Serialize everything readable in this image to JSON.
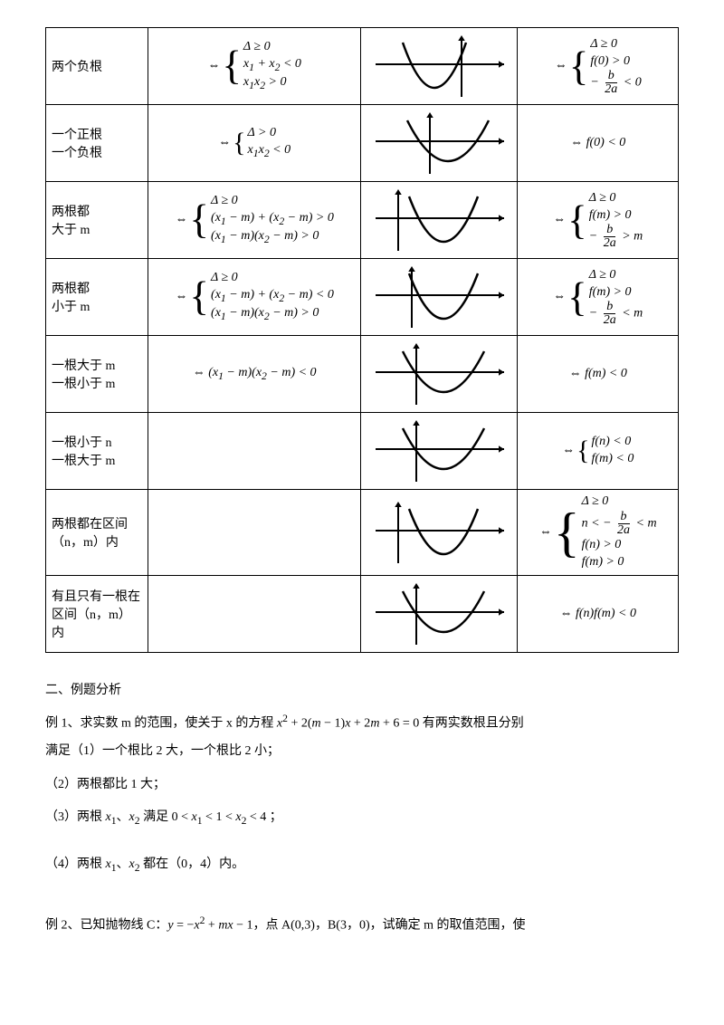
{
  "table": {
    "rows": [
      {
        "label": "两个负根",
        "cond2": {
          "iff": true,
          "lines": [
            "Δ ≥ 0",
            "<i>x</i><sub>1</sub> + <i>x</i><sub>2</sub> &lt; 0",
            "<i>x</i><sub>1</sub><i>x</i><sub>2</sub> &gt; 0"
          ]
        },
        "graph": {
          "type": "parabola",
          "axisX": 105,
          "vertexX": 75,
          "vertexY": 62,
          "halfW": 35,
          "depth": 50
        },
        "cond4": {
          "iff": true,
          "lines": [
            "Δ ≥ 0",
            "<i>f</i>(0) &gt; 0",
            "− <span class='frac'><span class='num'><i>b</i></span><span class='den'>2<i>a</i></span></span> &lt; 0"
          ]
        }
      },
      {
        "label": "一个正根\n一个负根",
        "cond2": {
          "iff": true,
          "lines": [
            "Δ &gt; 0",
            "<i>x</i><sub>1</sub><i>x</i><sub>2</sub> &lt; 0"
          ]
        },
        "graph": {
          "type": "parabola",
          "axisX": 70,
          "vertexX": 90,
          "vertexY": 58,
          "halfW": 45,
          "depth": 45
        },
        "cond4": {
          "plain": "⇔ <i>f</i>(0) &lt; 0"
        }
      },
      {
        "label": "两根都\n大于 m",
        "cond2": {
          "iff": true,
          "lines": [
            "Δ ≥ 0",
            "(<i>x</i><sub>1</sub> − <i>m</i>) + (<i>x</i><sub>2</sub> − <i>m</i>) &gt; 0",
            "(<i>x</i><sub>1</sub> − <i>m</i>)(<i>x</i><sub>2</sub> − <i>m</i>) &gt; 0"
          ]
        },
        "graph": {
          "type": "parabola",
          "axisX": 35,
          "vertexX": 85,
          "vertexY": 62,
          "halfW": 38,
          "depth": 50
        },
        "cond4": {
          "iff": true,
          "lines": [
            "Δ ≥ 0",
            "<i>f</i>(<i>m</i>) &gt; 0",
            "− <span class='frac'><span class='num'><i>b</i></span><span class='den'>2<i>a</i></span></span> &gt; <i>m</i>"
          ]
        }
      },
      {
        "label": "两根都\n小于 m",
        "cond2": {
          "iff": true,
          "lines": [
            "Δ ≥ 0",
            "(<i>x</i><sub>1</sub> − <i>m</i>) + (<i>x</i><sub>2</sub> − <i>m</i>) &lt; 0",
            "(<i>x</i><sub>1</sub> − <i>m</i>)(<i>x</i><sub>2</sub> − <i>m</i>) &gt; 0"
          ]
        },
        "graph": {
          "type": "parabola",
          "axisX": 50,
          "vertexX": 85,
          "vertexY": 62,
          "halfW": 38,
          "depth": 50
        },
        "cond4": {
          "iff": true,
          "lines": [
            "Δ ≥ 0",
            "<i>f</i>(<i>m</i>) &gt; 0",
            "− <span class='frac'><span class='num'><i>b</i></span><span class='den'>2<i>a</i></span></span> &lt; <i>m</i>"
          ]
        }
      },
      {
        "label": "一根大于 m\n一根小于 m",
        "cond2": {
          "plain": "⇔ (<i>x</i><sub>1</sub> − <i>m</i>)(<i>x</i><sub>2</sub> − <i>m</i>) &lt; 0"
        },
        "graph": {
          "type": "parabola",
          "axisX": 55,
          "vertexX": 85,
          "vertexY": 58,
          "halfW": 45,
          "depth": 45
        },
        "cond4": {
          "plain": "⇔ <i>f</i>(<i>m</i>) &lt; 0"
        }
      },
      {
        "label": "一根小于 n\n一根大于 m",
        "cond2": {
          "plain": ""
        },
        "graph": {
          "type": "parabola",
          "axisX": 55,
          "vertexX": 85,
          "vertexY": 58,
          "halfW": 45,
          "depth": 45
        },
        "cond4": {
          "iff": true,
          "lines": [
            "<i>f</i>(<i>n</i>) &lt; 0",
            "<i>f</i>(<i>m</i>) &lt; 0"
          ]
        }
      },
      {
        "label": "两根都在区间\n（n，m）内",
        "cond2": {
          "plain": ""
        },
        "graph": {
          "type": "parabola",
          "axisX": 35,
          "vertexX": 85,
          "vertexY": 62,
          "halfW": 38,
          "depth": 50
        },
        "cond4": {
          "iff": true,
          "lines": [
            "Δ ≥ 0",
            "<i>n</i> &lt; − <span class='frac'><span class='num'><i>b</i></span><span class='den'>2<i>a</i></span></span> &lt; <i>m</i>",
            "<i>f</i>(<i>n</i>) &gt; 0",
            "<i>f</i>(<i>m</i>) &gt; 0"
          ]
        }
      },
      {
        "label": "有且只有一根在\n区间（n，m）\n内",
        "cond2": {
          "plain": ""
        },
        "graph": {
          "type": "parabola",
          "axisX": 55,
          "vertexX": 85,
          "vertexY": 58,
          "halfW": 45,
          "depth": 45
        },
        "cond4": {
          "plain": "⇔ <i>f</i>(<i>n</i>)<i>f</i>(<i>m</i>) &lt; 0"
        }
      }
    ],
    "graphStyle": {
      "w": 160,
      "h": 76,
      "strokeAxis": "#000",
      "strokeAxisW": 2,
      "strokeCurve": "#000",
      "strokeCurveW": 2.5,
      "arrowSize": 6
    }
  },
  "section2_title": "二、例题分析",
  "ex1": {
    "stem": "例 1、求实数 m 的范围，使关于 x 的方程 <i>x</i><sup>2</sup> + 2(<i>m</i> − 1)<i>x</i> + 2<i>m</i> + 6 = 0 有两实数根且分别",
    "lead": "满足（1）一个根比 2 大，一个根比 2 小；",
    "p2": "（2）两根都比 1 大；",
    "p3": "（3）两根 <i>x</i><sub>1</sub>、<i>x</i><sub>2</sub> 满足 0 &lt; <i>x</i><sub>1</sub> &lt; 1 &lt; <i>x</i><sub>2</sub> &lt; 4 ；",
    "p4": "（4）两根 <i>x</i><sub>1</sub>、<i>x</i><sub>2</sub> 都在（0，4）内。"
  },
  "ex2": "例 2、已知抛物线 C：<i>y</i> = −<i>x</i><sup>2</sup> + <i>mx</i> − 1，点 A(0,3)，B(3，0)，试确定 m 的取值范围，使"
}
